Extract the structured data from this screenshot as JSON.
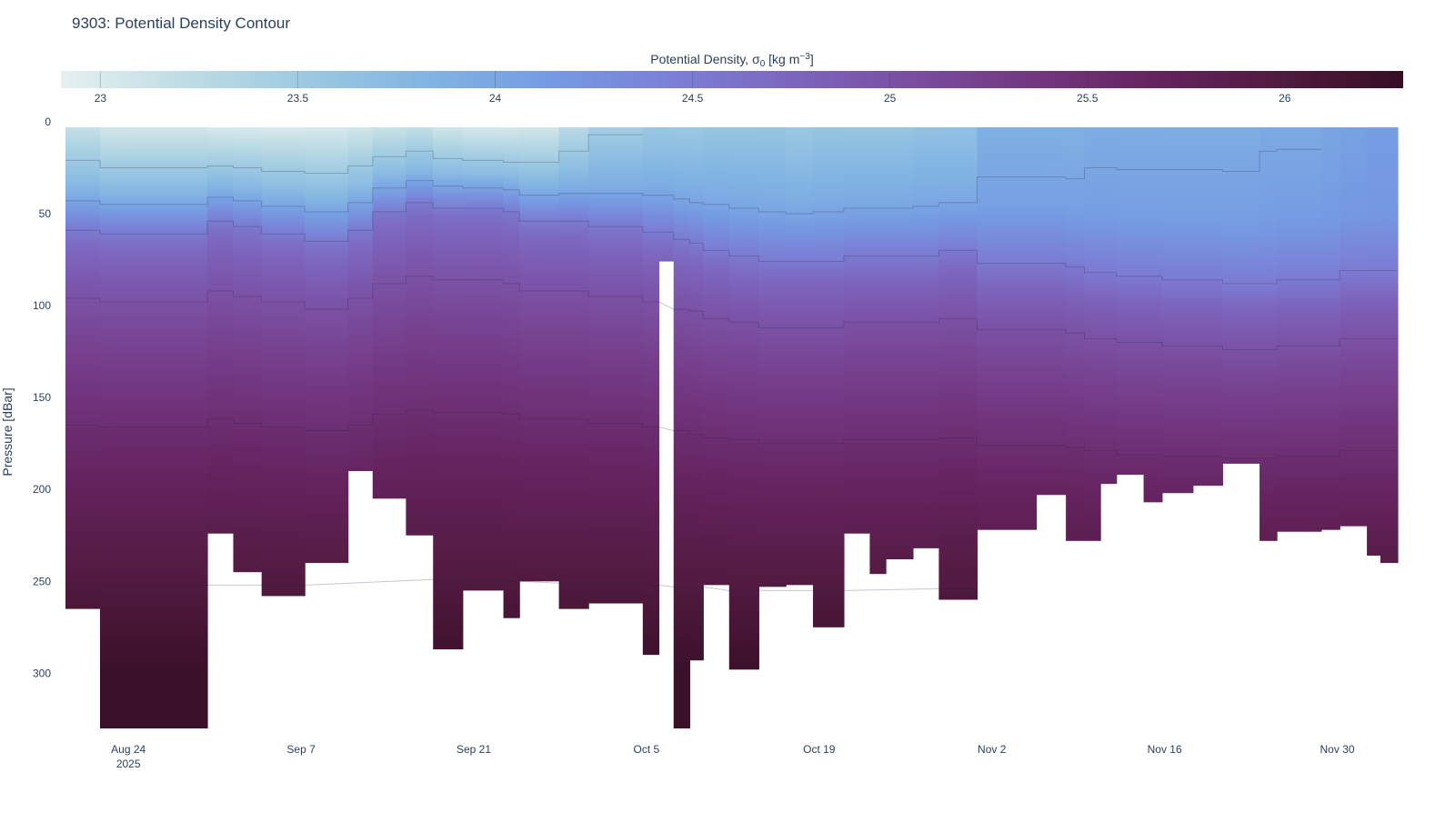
{
  "chart_data": {
    "type": "heatmap",
    "title": "9303: Potential Density Contour",
    "colorbar": {
      "title": "Potential Density, σ",
      "title_sub": "0",
      "title_units_pre": " [kg m",
      "title_units_sup": "−3",
      "title_units_post": "]",
      "range": [
        22.9,
        26.3
      ],
      "ticks": [
        23,
        23.5,
        24,
        24.5,
        25,
        25.5,
        26
      ],
      "tick_labels": [
        "23",
        "23.5",
        "24",
        "24.5",
        "25",
        "25.5",
        "26"
      ],
      "colorscale": [
        "#e6f0f0",
        "#bfdde5",
        "#9cc9e2",
        "#81b4e3",
        "#759be3",
        "#7b80d6",
        "#7d65be",
        "#7a4da0",
        "#733680",
        "#64235e",
        "#521a40",
        "#360e24"
      ]
    },
    "xaxis": {
      "unit": "days since 2025-08-24",
      "range": [
        -5.1,
        102.9
      ],
      "ticks": [
        0,
        14,
        28,
        42,
        56,
        70,
        84,
        98
      ],
      "tick_labels": [
        "Aug 24",
        "Sep 7",
        "Sep 21",
        "Oct 5",
        "Oct 19",
        "Nov 2",
        "Nov 16",
        "Nov 30"
      ],
      "year_label": "2025"
    },
    "yaxis": {
      "title": "Pressure [dBar]",
      "range": [
        3,
        330
      ],
      "reversed": true,
      "ticks": [
        0,
        50,
        100,
        150,
        200,
        250,
        300
      ],
      "tick_labels": [
        "0",
        "50",
        "100",
        "150",
        "200",
        "250",
        "300"
      ]
    },
    "profiles_fields": [
      "start_day",
      "end_day",
      "max_pressure",
      "surface_sigma",
      "mixed_layer_depth"
    ],
    "profiles": [
      [
        -5.1,
        -2.3,
        265,
        23.1,
        60
      ],
      [
        -2.3,
        6.4,
        330,
        23.0,
        62
      ],
      [
        6.4,
        8.5,
        224,
        22.95,
        55
      ],
      [
        8.5,
        10.8,
        245,
        22.95,
        58
      ],
      [
        10.8,
        14.3,
        258,
        22.95,
        62
      ],
      [
        14.3,
        17.8,
        240,
        22.95,
        66
      ],
      [
        17.8,
        19.8,
        190,
        23.0,
        60
      ],
      [
        19.8,
        22.5,
        205,
        23.05,
        50
      ],
      [
        22.5,
        24.7,
        225,
        23.1,
        45
      ],
      [
        24.7,
        27.1,
        287,
        23.0,
        48
      ],
      [
        27.1,
        30.4,
        255,
        22.95,
        48
      ],
      [
        30.4,
        31.7,
        270,
        22.95,
        50
      ],
      [
        31.7,
        34.9,
        250,
        23.0,
        55
      ],
      [
        34.9,
        37.3,
        265,
        23.2,
        55
      ],
      [
        37.3,
        41.7,
        262,
        23.4,
        58
      ],
      [
        41.7,
        43.0,
        290,
        23.5,
        62
      ],
      [
        43.0,
        44.2,
        76,
        23.5,
        62
      ],
      [
        44.2,
        45.5,
        330,
        23.5,
        66
      ],
      [
        45.5,
        46.6,
        293,
        23.5,
        68
      ],
      [
        46.6,
        48.7,
        252,
        23.55,
        72
      ],
      [
        48.7,
        51.1,
        298,
        23.55,
        75
      ],
      [
        51.1,
        53.3,
        253,
        23.55,
        78
      ],
      [
        53.3,
        55.5,
        252,
        23.5,
        78
      ],
      [
        55.5,
        58.0,
        275,
        23.55,
        78
      ],
      [
        58.0,
        60.1,
        224,
        23.55,
        75
      ],
      [
        60.1,
        61.4,
        246,
        23.55,
        75
      ],
      [
        61.4,
        63.6,
        238,
        23.55,
        75
      ],
      [
        63.6,
        65.7,
        232,
        23.6,
        75
      ],
      [
        65.7,
        68.8,
        260,
        23.6,
        72
      ],
      [
        68.8,
        73.6,
        222,
        23.85,
        80
      ],
      [
        73.6,
        76.0,
        203,
        23.85,
        80
      ],
      [
        76.0,
        77.5,
        228,
        23.85,
        82
      ],
      [
        77.5,
        78.8,
        228,
        23.9,
        85
      ],
      [
        78.8,
        80.1,
        197,
        23.9,
        85
      ],
      [
        80.1,
        82.3,
        192,
        23.9,
        88
      ],
      [
        82.3,
        83.8,
        207,
        23.9,
        88
      ],
      [
        83.8,
        86.3,
        202,
        23.9,
        90
      ],
      [
        86.3,
        88.7,
        198,
        23.9,
        90
      ],
      [
        88.7,
        91.7,
        186,
        23.9,
        92
      ],
      [
        91.7,
        93.1,
        228,
        23.95,
        92
      ],
      [
        93.1,
        96.7,
        223,
        23.95,
        90
      ],
      [
        96.7,
        98.2,
        222,
        24.0,
        90
      ],
      [
        98.2,
        100.4,
        220,
        24.05,
        85
      ],
      [
        100.4,
        101.5,
        236,
        24.1,
        85
      ],
      [
        101.5,
        102.9,
        240,
        24.1,
        85
      ]
    ]
  }
}
